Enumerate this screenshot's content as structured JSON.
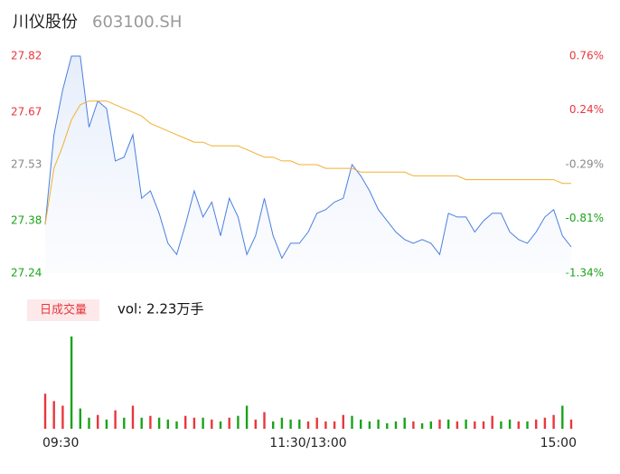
{
  "header": {
    "title": "川仪股份",
    "code": "603100.SH"
  },
  "chart_data": [
    {
      "type": "line",
      "x": [
        0,
        4,
        8,
        12,
        16,
        20,
        24,
        28,
        32,
        36,
        40,
        44,
        48,
        52,
        56,
        60,
        64,
        68,
        72,
        76,
        80,
        84,
        88,
        92,
        96,
        100,
        104,
        108,
        112,
        116,
        120,
        124,
        128,
        132,
        136,
        140,
        144,
        148,
        152,
        156,
        160,
        164,
        168,
        172,
        176,
        180,
        184,
        188,
        192,
        196,
        200,
        204,
        208,
        212,
        216,
        220,
        224,
        228,
        232,
        236,
        240
      ],
      "xlim": [
        0,
        240
      ],
      "xticks": [
        {
          "value": 0,
          "label": "09:30"
        },
        {
          "value": 120,
          "label": "11:30/13:00"
        },
        {
          "value": 240,
          "label": "15:00"
        }
      ],
      "ylim": [
        27.24,
        27.82
      ],
      "yticks": [
        27.24,
        27.38,
        27.53,
        27.67,
        27.82
      ],
      "y2lim": [
        -1.34,
        0.76
      ],
      "y2ticks": [
        {
          "value": -1.34,
          "label": "-1.34%"
        },
        {
          "value": -0.81,
          "label": "-0.81%"
        },
        {
          "value": -0.29,
          "label": "-0.29%"
        },
        {
          "value": 0.24,
          "label": "0.24%"
        },
        {
          "value": 0.76,
          "label": "0.76%"
        }
      ],
      "tick_colors": [
        "#1aa31a",
        "#1aa31a",
        "#888888",
        "#e8373e",
        "#e8373e"
      ],
      "series": [
        {
          "color": "#4a7fe0",
          "values": [
            27.37,
            27.61,
            27.73,
            27.82,
            27.82,
            27.63,
            27.7,
            27.68,
            27.54,
            27.55,
            27.61,
            27.44,
            27.46,
            27.4,
            27.32,
            27.29,
            27.37,
            27.46,
            27.39,
            27.43,
            27.34,
            27.44,
            27.39,
            27.29,
            27.34,
            27.44,
            27.34,
            27.28,
            27.32,
            27.32,
            27.35,
            27.4,
            27.41,
            27.43,
            27.44,
            27.53,
            27.5,
            27.46,
            27.41,
            27.38,
            27.35,
            27.33,
            27.32,
            27.33,
            27.32,
            27.29,
            27.4,
            27.39,
            27.39,
            27.35,
            27.38,
            27.4,
            27.4,
            27.35,
            27.33,
            27.32,
            27.35,
            27.39,
            27.41,
            27.34,
            27.31
          ]
        },
        {
          "color": "#f0b030",
          "values": [
            27.37,
            27.52,
            27.58,
            27.65,
            27.69,
            27.7,
            27.7,
            27.7,
            27.69,
            27.68,
            27.67,
            27.66,
            27.64,
            27.63,
            27.62,
            27.61,
            27.6,
            27.59,
            27.59,
            27.58,
            27.58,
            27.58,
            27.58,
            27.57,
            27.56,
            27.55,
            27.55,
            27.54,
            27.54,
            27.53,
            27.53,
            27.53,
            27.52,
            27.52,
            27.52,
            27.52,
            27.51,
            27.51,
            27.51,
            27.51,
            27.51,
            27.51,
            27.5,
            27.5,
            27.5,
            27.5,
            27.5,
            27.5,
            27.49,
            27.49,
            27.49,
            27.49,
            27.49,
            27.49,
            27.49,
            27.49,
            27.49,
            27.49,
            27.49,
            27.48,
            27.48
          ]
        }
      ]
    },
    {
      "type": "bar",
      "legend": "日成交量",
      "annotation": "vol: 2.23万手",
      "values": [
        38,
        30,
        25,
        100,
        22,
        12,
        15,
        10,
        20,
        12,
        25,
        12,
        14,
        12,
        10,
        8,
        14,
        12,
        12,
        10,
        8,
        12,
        14,
        25,
        10,
        18,
        8,
        12,
        10,
        10,
        8,
        12,
        8,
        8,
        15,
        14,
        10,
        8,
        10,
        6,
        8,
        12,
        8,
        6,
        8,
        10,
        10,
        8,
        10,
        8,
        8,
        14,
        8,
        10,
        8,
        8,
        10,
        12,
        15,
        25,
        10
      ],
      "colors": [
        "#e8373e",
        "#e8373e",
        "#e8373e",
        "#1aa31a",
        "#1aa31a",
        "#1aa31a",
        "#e8373e",
        "#1aa31a",
        "#e8373e",
        "#1aa31a",
        "#e8373e",
        "#1aa31a",
        "#e8373e",
        "#1aa31a",
        "#1aa31a",
        "#1aa31a",
        "#e8373e",
        "#e8373e",
        "#1aa31a",
        "#e8373e",
        "#1aa31a",
        "#e8373e",
        "#1aa31a",
        "#1aa31a",
        "#e8373e",
        "#e8373e",
        "#1aa31a",
        "#1aa31a",
        "#1aa31a",
        "#1aa31a",
        "#e8373e",
        "#e8373e",
        "#e8373e",
        "#e8373e",
        "#e8373e",
        "#1aa31a",
        "#1aa31a",
        "#1aa31a",
        "#1aa31a",
        "#1aa31a",
        "#1aa31a",
        "#1aa31a",
        "#e8373e",
        "#1aa31a",
        "#1aa31a",
        "#e8373e",
        "#1aa31a",
        "#e8373e",
        "#1aa31a",
        "#e8373e",
        "#e8373e",
        "#e8373e",
        "#1aa31a",
        "#1aa31a",
        "#e8373e",
        "#1aa31a",
        "#e8373e",
        "#e8373e",
        "#e8373e",
        "#1aa31a",
        "#e8373e"
      ]
    }
  ]
}
